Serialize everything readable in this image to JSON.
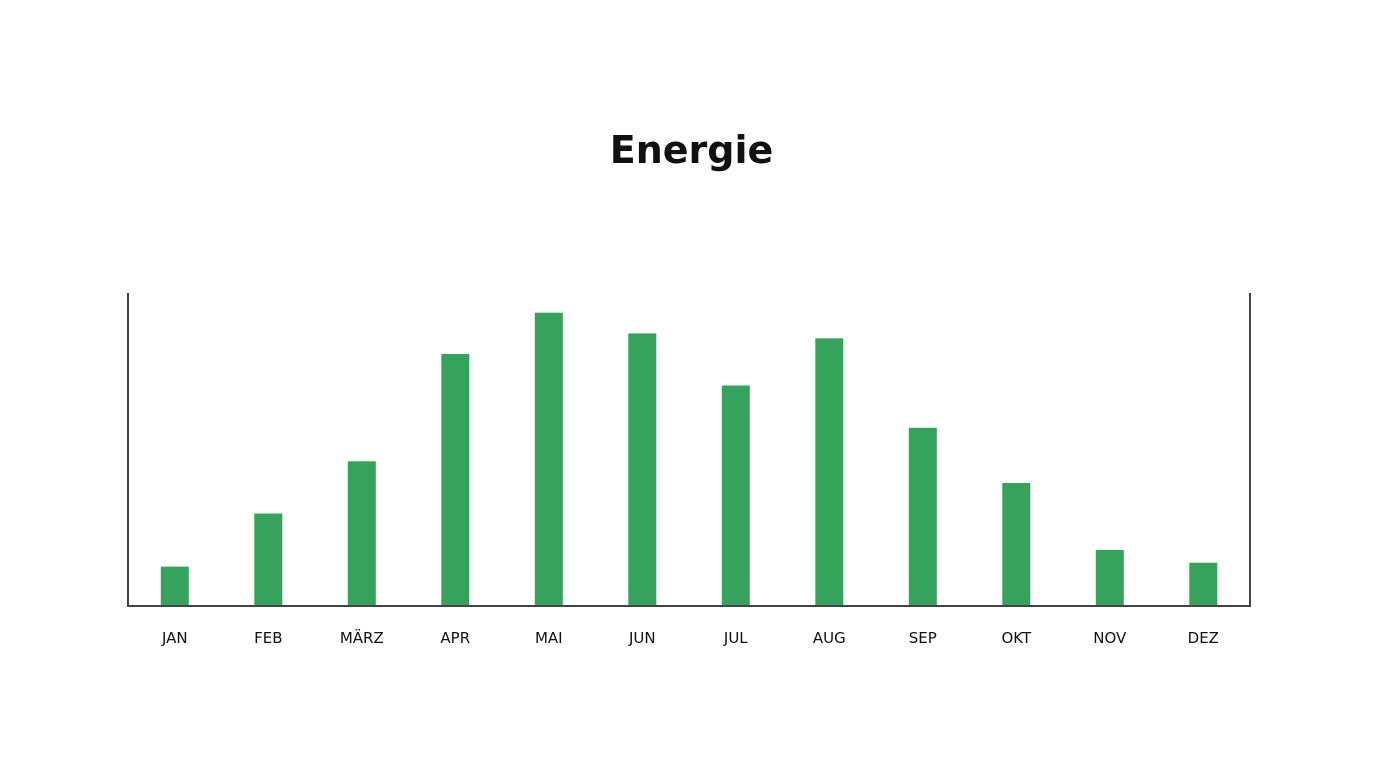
{
  "chart_data": {
    "type": "bar",
    "title": "Energie",
    "xlabel": "",
    "ylabel": "",
    "categories": [
      "JAN",
      "FEB",
      "MÄRZ",
      "APR",
      "MAI",
      "JUN",
      "JUL",
      "AUG",
      "SEP",
      "OKT",
      "NOV",
      "DEZ"
    ],
    "values": [
      40,
      94,
      147,
      256,
      298,
      277,
      224,
      272,
      181,
      125,
      57,
      44
    ],
    "ylim": [
      0,
      318
    ],
    "grid": false,
    "legend": "none",
    "colors": {
      "bar": "#36a35c",
      "axis": "#444444"
    }
  }
}
